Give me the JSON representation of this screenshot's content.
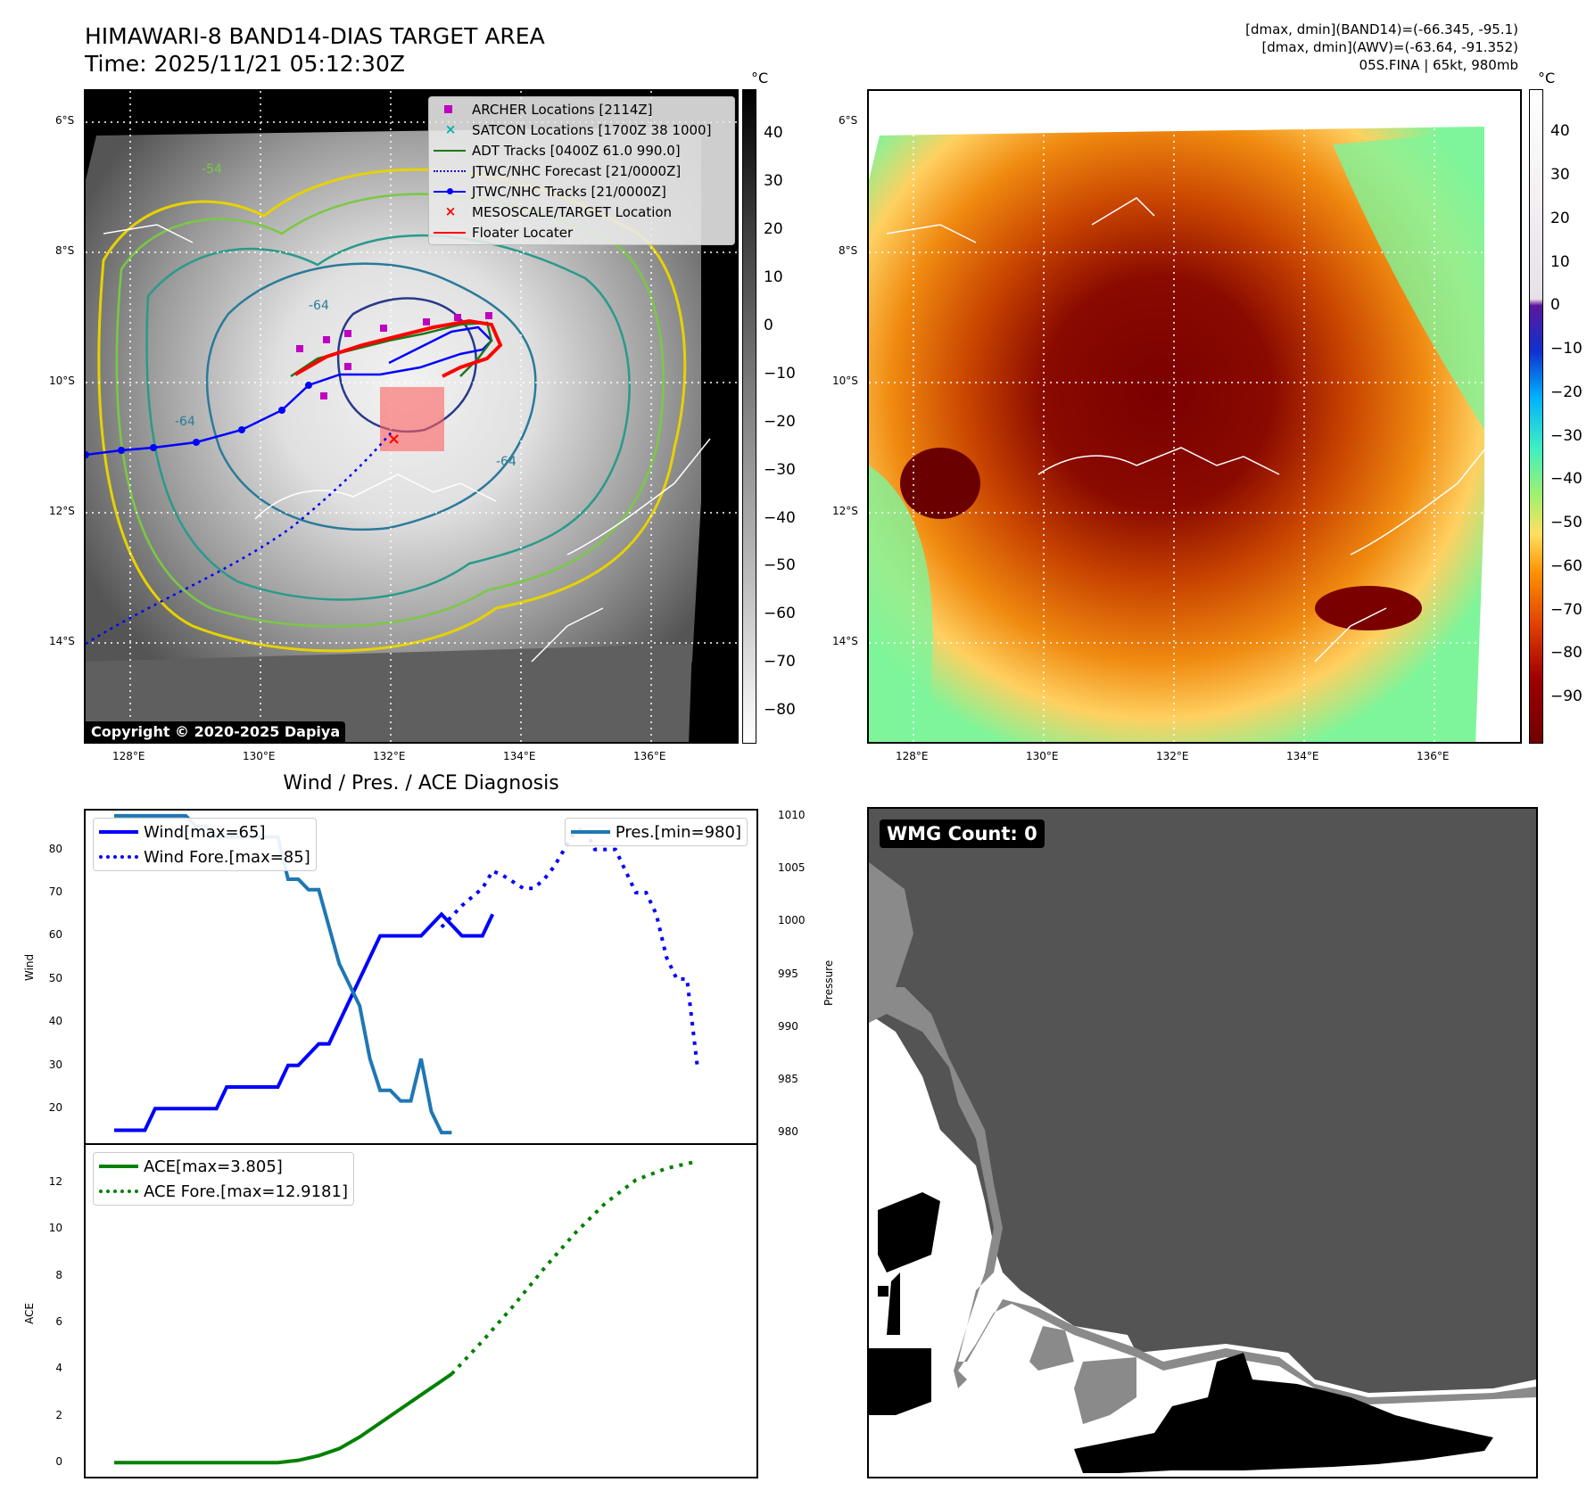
{
  "header": {
    "title": "HIMAWARI-8 BAND14-DIAS TARGET AREA",
    "time": "Time: 2025/11/21 05:12:30Z",
    "stats_band14": "[dmax, dmin](BAND14)=(-66.345, -95.1)",
    "stats_awv": "[dmax, dmin](AWV)=(-63.64, -91.352)",
    "storm": "05S.FINA | 65kt, 980mb"
  },
  "map_common": {
    "lat_labels": [
      "6°S",
      "8°S",
      "10°S",
      "12°S",
      "14°S"
    ],
    "lon_labels": [
      "128°E",
      "130°E",
      "132°E",
      "134°E",
      "136°E"
    ]
  },
  "panel_ir": {
    "unit": "°C",
    "colorbar_ticks": [
      "40",
      "30",
      "20",
      "10",
      "0",
      "−10",
      "−20",
      "−30",
      "−40",
      "−50",
      "−60",
      "−70",
      "−80"
    ],
    "copyright": "Copyright © 2020-2025 Dapiya",
    "legend": [
      {
        "label": "ARCHER Locations [2114Z]",
        "symbol": "square",
        "color": "#c000c0"
      },
      {
        "label": "SATCON Locations [1700Z 38 1000]",
        "symbol": "x",
        "color": "#00b0b0"
      },
      {
        "label": "ADT Tracks [0400Z 61.0 990.0]",
        "symbol": "line",
        "color": "#1a7a1a"
      },
      {
        "label": "JTWC/NHC Forecast [21/0000Z]",
        "symbol": "dotted",
        "color": "#0000ff"
      },
      {
        "label": "JTWC/NHC Tracks [21/0000Z]",
        "symbol": "line-dot",
        "color": "#0000ff"
      },
      {
        "label": "MESOSCALE/TARGET Location",
        "symbol": "x",
        "color": "#ff0000"
      },
      {
        "label": "Floater Locater",
        "symbol": "line",
        "color": "#ff0000"
      }
    ],
    "contour_labels": [
      "-54",
      "-64",
      "-64",
      "-64"
    ]
  },
  "panel_awv": {
    "unit": "°C",
    "colorbar_ticks": [
      "40",
      "30",
      "20",
      "10",
      "0",
      "−10",
      "−20",
      "−30",
      "−40",
      "−50",
      "−60",
      "−70",
      "−80",
      "−90"
    ]
  },
  "diagnosis": {
    "title": "Wind / Pres. / ACE Diagnosis",
    "wind_ylabel": "Wind",
    "pres_ylabel": "Pressure",
    "ace_ylabel": "ACE",
    "legend_wind": "Wind[max=65]",
    "legend_wind_fore": "Wind Fore.[max=85]",
    "legend_pres": "Pres.[min=980]",
    "legend_ace": "ACE[max=3.805]",
    "legend_ace_fore": "ACE Fore.[max=12.9181]"
  },
  "wmg": {
    "label": "WMG Count: 0"
  },
  "chart_data": [
    {
      "type": "line",
      "name": "wind",
      "ylim": [
        12,
        89
      ],
      "x_range": [
        0,
        30
      ],
      "yticks": [
        20,
        30,
        40,
        50,
        60,
        70,
        80
      ],
      "series": [
        {
          "name": "Wind[max=65]",
          "style": "solid",
          "color": "#0000ff",
          "x": [
            0,
            1.5,
            2,
            5,
            5.5,
            8,
            8.5,
            9,
            10,
            10.5,
            11,
            11.5,
            12,
            12.5,
            13,
            15,
            16,
            17,
            17.5,
            18,
            18.5
          ],
          "y": [
            15,
            15,
            20,
            20,
            25,
            25,
            30,
            30,
            35,
            35,
            40,
            45,
            50,
            55,
            60,
            60,
            65,
            60,
            60,
            60,
            65
          ]
        },
        {
          "name": "Wind Fore.[max=85]",
          "style": "dotted",
          "color": "#0000ff",
          "x": [
            16,
            17,
            18,
            18.5,
            19,
            20,
            20.5,
            21,
            21.5,
            22,
            22.5,
            23,
            23.5,
            24,
            24.5,
            25,
            25.5,
            26,
            26.5,
            27,
            27.5,
            28,
            28.5
          ],
          "y": [
            62,
            67,
            71,
            75,
            74,
            71,
            71,
            73,
            76,
            80,
            84,
            85,
            80,
            80,
            80,
            75,
            70,
            70,
            65,
            55,
            50,
            50,
            30
          ]
        }
      ]
    },
    {
      "type": "line",
      "name": "pressure",
      "ylim": [
        979,
        1010.5
      ],
      "yticks": [
        980,
        985,
        990,
        995,
        1000,
        1005,
        1010
      ],
      "series": [
        {
          "name": "Pres.[min=980]",
          "color": "#1f77b4",
          "x": [
            0,
            3,
            3.5,
            4,
            4.5,
            5,
            6,
            8,
            8.5,
            9,
            9.5,
            10,
            11,
            12,
            12.5,
            13,
            13.5,
            14,
            14.5,
            15,
            15.5,
            16,
            16.5
          ],
          "y": [
            1010,
            1010,
            1010,
            1009,
            1009,
            1008,
            1008,
            1008,
            1004,
            1004,
            1003,
            1003,
            996,
            992,
            987,
            984,
            984,
            983,
            983,
            987,
            982,
            980,
            980
          ]
        }
      ]
    },
    {
      "type": "line",
      "name": "ace",
      "ylim": [
        -0.6,
        13.6
      ],
      "yticks": [
        0,
        2,
        4,
        6,
        8,
        10,
        12
      ],
      "series": [
        {
          "name": "ACE[max=3.805]",
          "style": "solid",
          "color": "#008000",
          "x": [
            0,
            8,
            9,
            10,
            11,
            12,
            13,
            14,
            15,
            16,
            16.5
          ],
          "y": [
            0,
            0,
            0.1,
            0.3,
            0.6,
            1.1,
            1.7,
            2.3,
            2.9,
            3.5,
            3.8
          ]
        },
        {
          "name": "ACE Fore.[max=12.9181]",
          "style": "dotted",
          "color": "#008000",
          "x": [
            16.5,
            18,
            19.5,
            21,
            22.5,
            24,
            25.5,
            27,
            28.5
          ],
          "y": [
            3.8,
            5.2,
            6.7,
            8.3,
            9.8,
            11.1,
            12.1,
            12.6,
            12.9
          ]
        }
      ]
    }
  ]
}
